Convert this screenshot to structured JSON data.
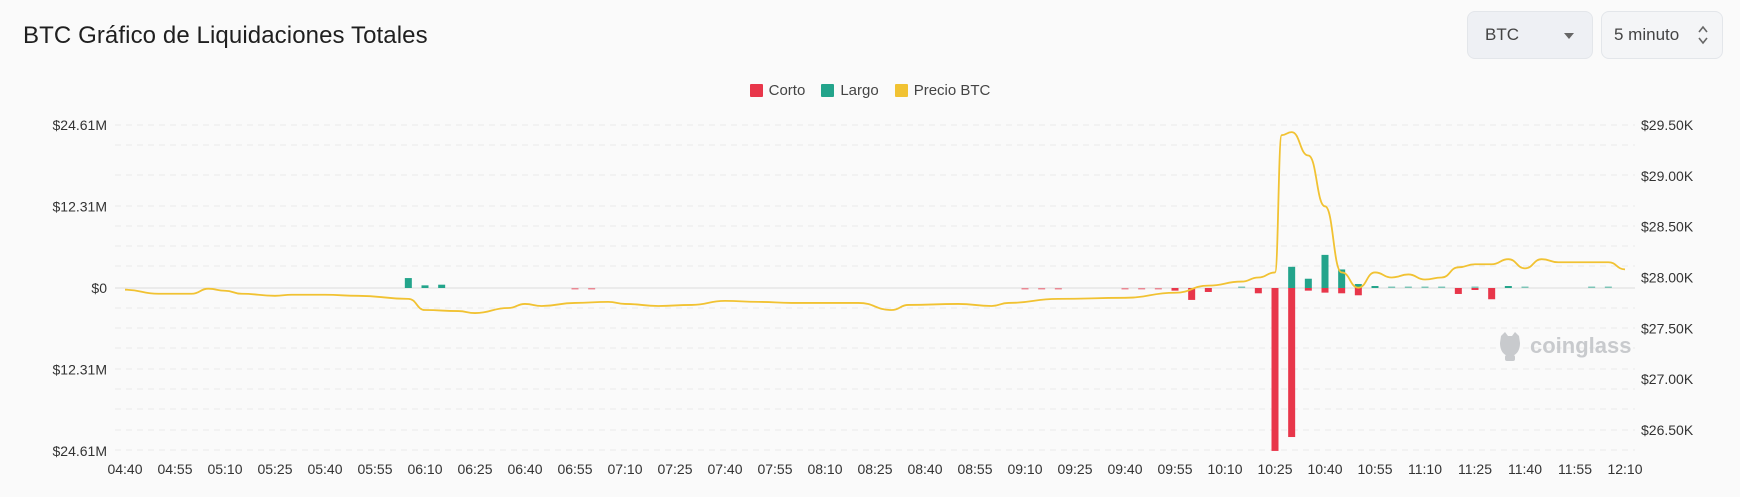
{
  "header": {
    "title": "BTC Gráfico de Liquidaciones Totales",
    "coin_select": "BTC",
    "interval_select": "5 minuto"
  },
  "watermark": "coinglass",
  "colors": {
    "short": "#e8364a",
    "long": "#23a48b",
    "price": "#f1c232",
    "grid": "#e9e9e9"
  },
  "chart_data": {
    "type": "bar",
    "title": "BTC Gráfico de Liquidaciones Totales",
    "legend": [
      {
        "name": "Corto",
        "color": "#e8364a"
      },
      {
        "name": "Largo",
        "color": "#23a48b"
      },
      {
        "name": "Precio BTC",
        "color": "#f1c232"
      }
    ],
    "legend_position": "top-center",
    "grid": true,
    "x_tick_labels": [
      "04:40",
      "04:55",
      "05:10",
      "05:25",
      "05:40",
      "05:55",
      "06:10",
      "06:25",
      "06:40",
      "06:55",
      "07:10",
      "07:25",
      "07:40",
      "07:55",
      "08:10",
      "08:25",
      "08:40",
      "08:55",
      "09:10",
      "09:25",
      "09:40",
      "09:55",
      "10:10",
      "10:25",
      "10:40",
      "10:55",
      "11:10",
      "11:25",
      "11:40",
      "11:55",
      "12:10"
    ],
    "y_left_tick_labels": [
      "$24.61M",
      "$12.31M",
      "$0",
      "$12.31M",
      "$24.61M"
    ],
    "y_left_range": [
      -24.61,
      24.61
    ],
    "y_left_unit": "$M",
    "y_right_tick_labels": [
      "$29.50K",
      "$29.00K",
      "$28.50K",
      "$28.00K",
      "$27.50K",
      "$27.00K",
      "$26.50K"
    ],
    "y_right_range": [
      26.3,
      29.6
    ],
    "y_right_unit": "$K",
    "series": [
      {
        "name": "Largo",
        "type": "bar",
        "color": "#23a48b",
        "points": [
          {
            "t": "06:05",
            "v": 1.5
          },
          {
            "t": "06:10",
            "v": 0.4
          },
          {
            "t": "06:15",
            "v": 0.5
          },
          {
            "t": "10:15",
            "v": 0.1
          },
          {
            "t": "10:30",
            "v": 3.2
          },
          {
            "t": "10:35",
            "v": 1.4
          },
          {
            "t": "10:40",
            "v": 5.0
          },
          {
            "t": "10:45",
            "v": 2.8
          },
          {
            "t": "10:50",
            "v": 0.6
          },
          {
            "t": "10:55",
            "v": 0.3
          },
          {
            "t": "11:00",
            "v": 0.2
          },
          {
            "t": "11:05",
            "v": 0.2
          },
          {
            "t": "11:10",
            "v": 0.2
          },
          {
            "t": "11:15",
            "v": 0.1
          },
          {
            "t": "11:25",
            "v": 0.1
          },
          {
            "t": "11:35",
            "v": 0.3
          },
          {
            "t": "11:40",
            "v": 0.2
          },
          {
            "t": "12:00",
            "v": 0.1
          },
          {
            "t": "12:05",
            "v": 0.1
          }
        ]
      },
      {
        "name": "Corto",
        "type": "bar",
        "color": "#e8364a",
        "points": [
          {
            "t": "06:55",
            "v": 0.1
          },
          {
            "t": "07:00",
            "v": 0.1
          },
          {
            "t": "09:10",
            "v": 0.1
          },
          {
            "t": "09:15",
            "v": 0.1
          },
          {
            "t": "09:20",
            "v": 0.1
          },
          {
            "t": "09:40",
            "v": 0.2
          },
          {
            "t": "09:45",
            "v": 0.2
          },
          {
            "t": "09:50",
            "v": 0.2
          },
          {
            "t": "09:55",
            "v": 0.4
          },
          {
            "t": "10:00",
            "v": 1.8
          },
          {
            "t": "10:05",
            "v": 0.6
          },
          {
            "t": "10:20",
            "v": 0.8
          },
          {
            "t": "10:25",
            "v": 24.6
          },
          {
            "t": "10:30",
            "v": 22.5
          },
          {
            "t": "10:35",
            "v": 0.4
          },
          {
            "t": "10:40",
            "v": 0.7
          },
          {
            "t": "10:45",
            "v": 0.8
          },
          {
            "t": "10:50",
            "v": 1.1
          },
          {
            "t": "11:20",
            "v": 0.9
          },
          {
            "t": "11:25",
            "v": 0.3
          },
          {
            "t": "11:30",
            "v": 1.7
          }
        ]
      },
      {
        "name": "Precio BTC",
        "type": "line",
        "color": "#f1c232",
        "points": [
          {
            "t": "04:40",
            "v": 27.88
          },
          {
            "t": "04:50",
            "v": 27.84
          },
          {
            "t": "05:00",
            "v": 27.84
          },
          {
            "t": "05:05",
            "v": 27.89
          },
          {
            "t": "05:10",
            "v": 27.87
          },
          {
            "t": "05:15",
            "v": 27.84
          },
          {
            "t": "05:25",
            "v": 27.82
          },
          {
            "t": "05:30",
            "v": 27.83
          },
          {
            "t": "05:40",
            "v": 27.83
          },
          {
            "t": "05:50",
            "v": 27.82
          },
          {
            "t": "06:05",
            "v": 27.79
          },
          {
            "t": "06:10",
            "v": 27.68
          },
          {
            "t": "06:20",
            "v": 27.67
          },
          {
            "t": "06:25",
            "v": 27.65
          },
          {
            "t": "06:35",
            "v": 27.7
          },
          {
            "t": "06:40",
            "v": 27.74
          },
          {
            "t": "06:45",
            "v": 27.72
          },
          {
            "t": "06:55",
            "v": 27.75
          },
          {
            "t": "07:05",
            "v": 27.76
          },
          {
            "t": "07:10",
            "v": 27.74
          },
          {
            "t": "07:20",
            "v": 27.72
          },
          {
            "t": "07:30",
            "v": 27.73
          },
          {
            "t": "07:40",
            "v": 27.77
          },
          {
            "t": "07:50",
            "v": 27.76
          },
          {
            "t": "08:00",
            "v": 27.75
          },
          {
            "t": "08:20",
            "v": 27.75
          },
          {
            "t": "08:30",
            "v": 27.68
          },
          {
            "t": "08:35",
            "v": 27.73
          },
          {
            "t": "08:50",
            "v": 27.74
          },
          {
            "t": "09:00",
            "v": 27.72
          },
          {
            "t": "09:05",
            "v": 27.75
          },
          {
            "t": "09:20",
            "v": 27.79
          },
          {
            "t": "09:40",
            "v": 27.8
          },
          {
            "t": "09:55",
            "v": 27.85
          },
          {
            "t": "10:05",
            "v": 27.92
          },
          {
            "t": "10:15",
            "v": 27.96
          },
          {
            "t": "10:20",
            "v": 28.0
          },
          {
            "t": "10:25",
            "v": 28.05
          },
          {
            "t": "10:27",
            "v": 29.4
          },
          {
            "t": "10:30",
            "v": 29.43
          },
          {
            "t": "10:35",
            "v": 29.2
          },
          {
            "t": "10:40",
            "v": 28.7
          },
          {
            "t": "10:45",
            "v": 28.05
          },
          {
            "t": "10:50",
            "v": 27.9
          },
          {
            "t": "10:55",
            "v": 28.05
          },
          {
            "t": "11:00",
            "v": 28.0
          },
          {
            "t": "11:05",
            "v": 28.03
          },
          {
            "t": "11:10",
            "v": 27.98
          },
          {
            "t": "11:15",
            "v": 28.0
          },
          {
            "t": "11:20",
            "v": 28.1
          },
          {
            "t": "11:25",
            "v": 28.13
          },
          {
            "t": "11:30",
            "v": 28.13
          },
          {
            "t": "11:35",
            "v": 28.18
          },
          {
            "t": "11:40",
            "v": 28.09
          },
          {
            "t": "11:45",
            "v": 28.18
          },
          {
            "t": "11:50",
            "v": 28.15
          },
          {
            "t": "12:00",
            "v": 28.15
          },
          {
            "t": "12:05",
            "v": 28.15
          },
          {
            "t": "12:10",
            "v": 28.08
          }
        ]
      }
    ]
  }
}
